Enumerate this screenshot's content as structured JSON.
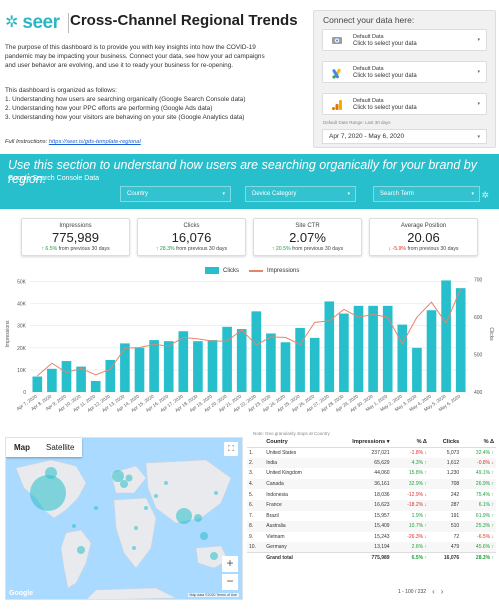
{
  "header": {
    "logo": "seer",
    "title": "Cross-Channel Regional Trends",
    "intro_lines": [
      "The purpose of this dashboard is to provide you with key insights into how the COVID-19",
      "pandemic may be impacting your business. Connect your data, see how your ad campaigns",
      "and user behavior are evolving, and use it to ready your business for re-opening."
    ],
    "org_lines": [
      "This dashboard is organized as follows:",
      "1. Understanding how users are searching organically (Google Search Console data)",
      "2. Understanding how your PPC efforts are performing (Google Ads data)",
      "3. Understanding how your visitors are behaving on your site (Google Analytics data)"
    ],
    "full_instructions_label": "Full Instructions:",
    "full_instructions_link": "https://seer.is/gds-template-regional"
  },
  "connect": {
    "title": "Connect your data here:",
    "sources": [
      {
        "line1": "Default Data",
        "line2": "Click to select your data",
        "icon": "search-console-icon"
      },
      {
        "line1": "Default Data",
        "line2": "Click to select your data",
        "icon": "google-ads-icon"
      },
      {
        "line1": "Default Data",
        "line2": "Click to select your data",
        "icon": "google-analytics-icon"
      }
    ],
    "date_label": "Default Date Range: Last 30 days",
    "date_value": "Apr 7, 2020 - May 6, 2020"
  },
  "banner": {
    "headline": "Use this section to understand how users are searching organically for your brand by region.",
    "source": "Google Search Console Data",
    "filters": [
      "Country",
      "Device Category",
      "Search Term"
    ]
  },
  "scorecards": [
    {
      "label": "Impressions",
      "value": "775,989",
      "delta": "↑ 6.5%",
      "delta_dir": "up",
      "suffix": " from previous 30 days"
    },
    {
      "label": "Clicks",
      "value": "16,076",
      "delta": "↑ 28.3%",
      "delta_dir": "up",
      "suffix": " from previous 30 days"
    },
    {
      "label": "Site CTR",
      "value": "2.07%",
      "delta": "↑ 20.5%",
      "delta_dir": "up",
      "suffix": " from previous 30 days"
    },
    {
      "label": "Average Position",
      "value": "20.06",
      "delta": "↓ -5.9%",
      "delta_dir": "down",
      "suffix": " from previous 30 days"
    }
  ],
  "chart_data": {
    "type": "bar",
    "legend": [
      "Clicks",
      "Impressions"
    ],
    "categories": [
      "Apr 7, 2020",
      "Apr 8, 2020",
      "Apr 9, 2020",
      "Apr 10, 2020",
      "Apr 11, 2020",
      "Apr 12, 2020",
      "Apr 13, 2020",
      "Apr 14, 2020",
      "Apr 15, 2020",
      "Apr 16, 2020",
      "Apr 17, 2020",
      "Apr 18, 2020",
      "Apr 19, 2020",
      "Apr 20, 2020",
      "Apr 21, 2020",
      "Apr 22, 2020",
      "Apr 23, 2020",
      "Apr 24, 2020",
      "Apr 25, 2020",
      "Apr 26, 2020",
      "Apr 27, 2020",
      "Apr 28, 2020",
      "Apr 29, 2020",
      "Apr 30, 2020",
      "May 1, 2020",
      "May 2, 2020",
      "May 3, 2020",
      "May 4, 2020",
      "May 5, 2020",
      "May 6, 2020"
    ],
    "series": [
      {
        "name": "Impressions",
        "axis": "left",
        "kind": "bar",
        "color": "#27bfcc",
        "values": [
          7000,
          10500,
          14000,
          11500,
          5000,
          14500,
          22000,
          20000,
          23500,
          23000,
          27500,
          23000,
          23500,
          29500,
          28500,
          36500,
          26500,
          22500,
          29000,
          24500,
          41000,
          35500,
          39000,
          39000,
          39000,
          30500,
          20000,
          37000,
          50500,
          47000
        ]
      },
      {
        "name": "Clicks",
        "axis": "right",
        "kind": "line",
        "color": "#e8846b",
        "values": [
          443,
          477,
          452,
          463,
          446,
          461,
          517,
          519,
          527,
          523,
          546,
          542,
          536,
          536,
          566,
          526,
          547,
          546,
          527,
          586,
          590,
          621,
          600,
          607,
          600,
          529,
          600,
          640,
          584,
          676
        ]
      }
    ],
    "yleft": {
      "label": "Impressions",
      "ticks": [
        "0",
        "10K",
        "20K",
        "30K",
        "40K",
        "50K"
      ],
      "range": [
        0,
        52500
      ]
    },
    "yright": {
      "label": "Clicks",
      "ticks": [
        "400",
        "500",
        "600",
        "700"
      ],
      "range": [
        400,
        710
      ]
    },
    "grid": true,
    "legend_position": "top-center"
  },
  "map": {
    "tabs": [
      "Map",
      "Satellite"
    ],
    "attribution": "Map data ©2020   Terms of Use",
    "google": "Google"
  },
  "table": {
    "note": "Note: Geo granularity stops at Country",
    "headers": [
      "",
      "Country",
      "Impressions ▾",
      "% Δ",
      "Clicks",
      "% Δ"
    ],
    "rows": [
      [
        "1.",
        "United States",
        "237,021",
        "-1.8% ↓",
        "5,073",
        "32.4% ↑"
      ],
      [
        "2.",
        "India",
        "65,629",
        "4.3% ↑",
        "1,612",
        "-0.8% ↓"
      ],
      [
        "3.",
        "United Kingdom",
        "44,060",
        "15.8% ↑",
        "1,230",
        "49.1% ↑"
      ],
      [
        "4.",
        "Canada",
        "36,161",
        "32.9% ↑",
        "708",
        "26.9% ↑"
      ],
      [
        "5.",
        "Indonesia",
        "18,036",
        "-12.9% ↓",
        "242",
        "75.4% ↑"
      ],
      [
        "6.",
        "France",
        "16,623",
        "-18.2% ↓",
        "287",
        "6.1% ↑"
      ],
      [
        "7.",
        "Brazil",
        "15,957",
        "1.9% ↑",
        "191",
        "61.9% ↑"
      ],
      [
        "8.",
        "Australia",
        "15,409",
        "10.7% ↑",
        "510",
        "25.3% ↑"
      ],
      [
        "9.",
        "Vietnam",
        "15,243",
        "-26.3% ↓",
        "72",
        "-6.5% ↓"
      ],
      [
        "10.",
        "Germany",
        "13,194",
        "2.6% ↑",
        "479",
        "45.6% ↑"
      ]
    ],
    "total": [
      "",
      "Grand total",
      "775,989",
      "6.5% ↑",
      "16,076",
      "28.3% ↑"
    ],
    "pager": "1 - 100 / 232"
  }
}
